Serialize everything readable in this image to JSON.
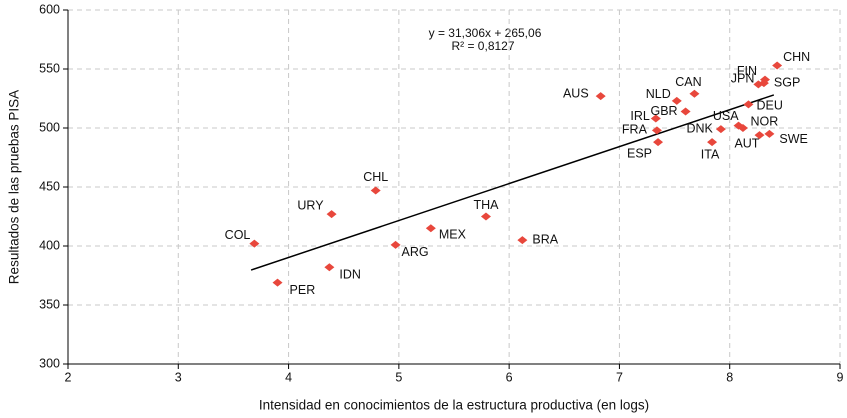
{
  "chart_data": {
    "type": "scatter",
    "x_label": "Intensidad en conocimientos de la estructura productiva (en logs)",
    "y_label": "Resultados de las pruebas PISA",
    "annotations": [
      "y = 31,306x + 265,06",
      "R² = 0,8127"
    ],
    "trendline": {
      "slope": 31.306,
      "intercept": 265.06,
      "xrange": [
        3.66,
        8.4
      ]
    },
    "color": "#e8473c",
    "labels": [
      "COL",
      "PER",
      "IDN",
      "URY",
      "CHL",
      "ARG",
      "MEX",
      "THA",
      "BRA",
      "AUS",
      "IRL",
      "FRA",
      "ESP",
      "GBR",
      "NLD",
      "CAN",
      "DNK",
      "ITA",
      "USA",
      "AUT",
      "NOR",
      "SWE",
      "DEU",
      "JPN",
      "FIN",
      "SGP",
      "CHN"
    ],
    "x": [
      3.69,
      3.9,
      4.37,
      4.39,
      4.79,
      4.97,
      5.29,
      5.79,
      6.12,
      6.83,
      7.33,
      7.34,
      7.35,
      7.6,
      7.52,
      7.68,
      7.92,
      7.84,
      8.08,
      8.12,
      8.27,
      8.36,
      8.17,
      8.26,
      8.32,
      8.31,
      8.43
    ],
    "values": [
      402,
      369,
      382,
      427,
      447,
      401,
      415,
      425,
      405,
      527,
      508,
      498,
      488,
      514,
      523,
      529,
      499,
      488,
      502,
      500,
      494,
      495,
      520,
      537,
      541,
      538,
      553
    ],
    "xlim": [
      2,
      9
    ],
    "xticks": [
      2,
      3,
      4,
      5,
      6,
      7,
      8,
      9
    ],
    "ylim": [
      300,
      600
    ],
    "yticks": [
      300,
      350,
      400,
      450,
      500,
      550,
      600
    ],
    "grid": true
  }
}
